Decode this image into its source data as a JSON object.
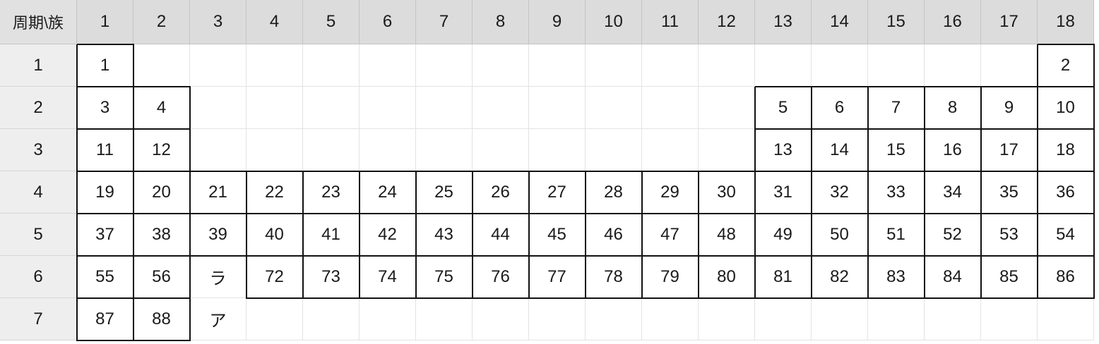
{
  "table": {
    "corner_label": "周期\\族",
    "groups": [
      "1",
      "2",
      "3",
      "4",
      "5",
      "6",
      "7",
      "8",
      "9",
      "10",
      "11",
      "12",
      "13",
      "14",
      "15",
      "16",
      "17",
      "18"
    ],
    "periods": [
      "1",
      "2",
      "3",
      "4",
      "5",
      "6",
      "7"
    ],
    "rows": [
      [
        "1",
        "",
        "",
        "",
        "",
        "",
        "",
        "",
        "",
        "",
        "",
        "",
        "",
        "",
        "",
        "",
        "",
        "2"
      ],
      [
        "3",
        "4",
        "",
        "",
        "",
        "",
        "",
        "",
        "",
        "",
        "",
        "",
        "5",
        "6",
        "7",
        "8",
        "9",
        "10"
      ],
      [
        "11",
        "12",
        "",
        "",
        "",
        "",
        "",
        "",
        "",
        "",
        "",
        "",
        "13",
        "14",
        "15",
        "16",
        "17",
        "18"
      ],
      [
        "19",
        "20",
        "21",
        "22",
        "23",
        "24",
        "25",
        "26",
        "27",
        "28",
        "29",
        "30",
        "31",
        "32",
        "33",
        "34",
        "35",
        "36"
      ],
      [
        "37",
        "38",
        "39",
        "40",
        "41",
        "42",
        "43",
        "44",
        "45",
        "46",
        "47",
        "48",
        "49",
        "50",
        "51",
        "52",
        "53",
        "54"
      ],
      [
        "55",
        "56",
        "ラ",
        "72",
        "73",
        "74",
        "75",
        "76",
        "77",
        "78",
        "79",
        "80",
        "81",
        "82",
        "83",
        "84",
        "85",
        "86"
      ],
      [
        "87",
        "88",
        "ア",
        "",
        "",
        "",
        "",
        "",
        "",
        "",
        "",
        "",
        "",
        "",
        "",
        "",
        "",
        ""
      ]
    ],
    "boxed_cells": [
      [
        0,
        0
      ],
      [
        0,
        17
      ],
      [
        1,
        0
      ],
      [
        1,
        1
      ],
      [
        1,
        12
      ],
      [
        1,
        13
      ],
      [
        1,
        14
      ],
      [
        1,
        15
      ],
      [
        1,
        16
      ],
      [
        1,
        17
      ],
      [
        2,
        0
      ],
      [
        2,
        1
      ],
      [
        2,
        12
      ],
      [
        2,
        13
      ],
      [
        2,
        14
      ],
      [
        2,
        15
      ],
      [
        2,
        16
      ],
      [
        2,
        17
      ],
      [
        3,
        0
      ],
      [
        3,
        1
      ],
      [
        3,
        2
      ],
      [
        3,
        3
      ],
      [
        3,
        4
      ],
      [
        3,
        5
      ],
      [
        3,
        6
      ],
      [
        3,
        7
      ],
      [
        3,
        8
      ],
      [
        3,
        9
      ],
      [
        3,
        10
      ],
      [
        3,
        11
      ],
      [
        3,
        12
      ],
      [
        3,
        13
      ],
      [
        3,
        14
      ],
      [
        3,
        15
      ],
      [
        3,
        16
      ],
      [
        3,
        17
      ],
      [
        4,
        0
      ],
      [
        4,
        1
      ],
      [
        4,
        2
      ],
      [
        4,
        3
      ],
      [
        4,
        4
      ],
      [
        4,
        5
      ],
      [
        4,
        6
      ],
      [
        4,
        7
      ],
      [
        4,
        8
      ],
      [
        4,
        9
      ],
      [
        4,
        10
      ],
      [
        4,
        11
      ],
      [
        4,
        12
      ],
      [
        4,
        13
      ],
      [
        4,
        14
      ],
      [
        4,
        15
      ],
      [
        4,
        16
      ],
      [
        4,
        17
      ],
      [
        5,
        0
      ],
      [
        5,
        1
      ],
      [
        5,
        3
      ],
      [
        5,
        4
      ],
      [
        5,
        5
      ],
      [
        5,
        6
      ],
      [
        5,
        7
      ],
      [
        5,
        8
      ],
      [
        5,
        9
      ],
      [
        5,
        10
      ],
      [
        5,
        11
      ],
      [
        5,
        12
      ],
      [
        5,
        13
      ],
      [
        5,
        14
      ],
      [
        5,
        15
      ],
      [
        5,
        16
      ],
      [
        5,
        17
      ],
      [
        6,
        0
      ],
      [
        6,
        1
      ]
    ]
  }
}
